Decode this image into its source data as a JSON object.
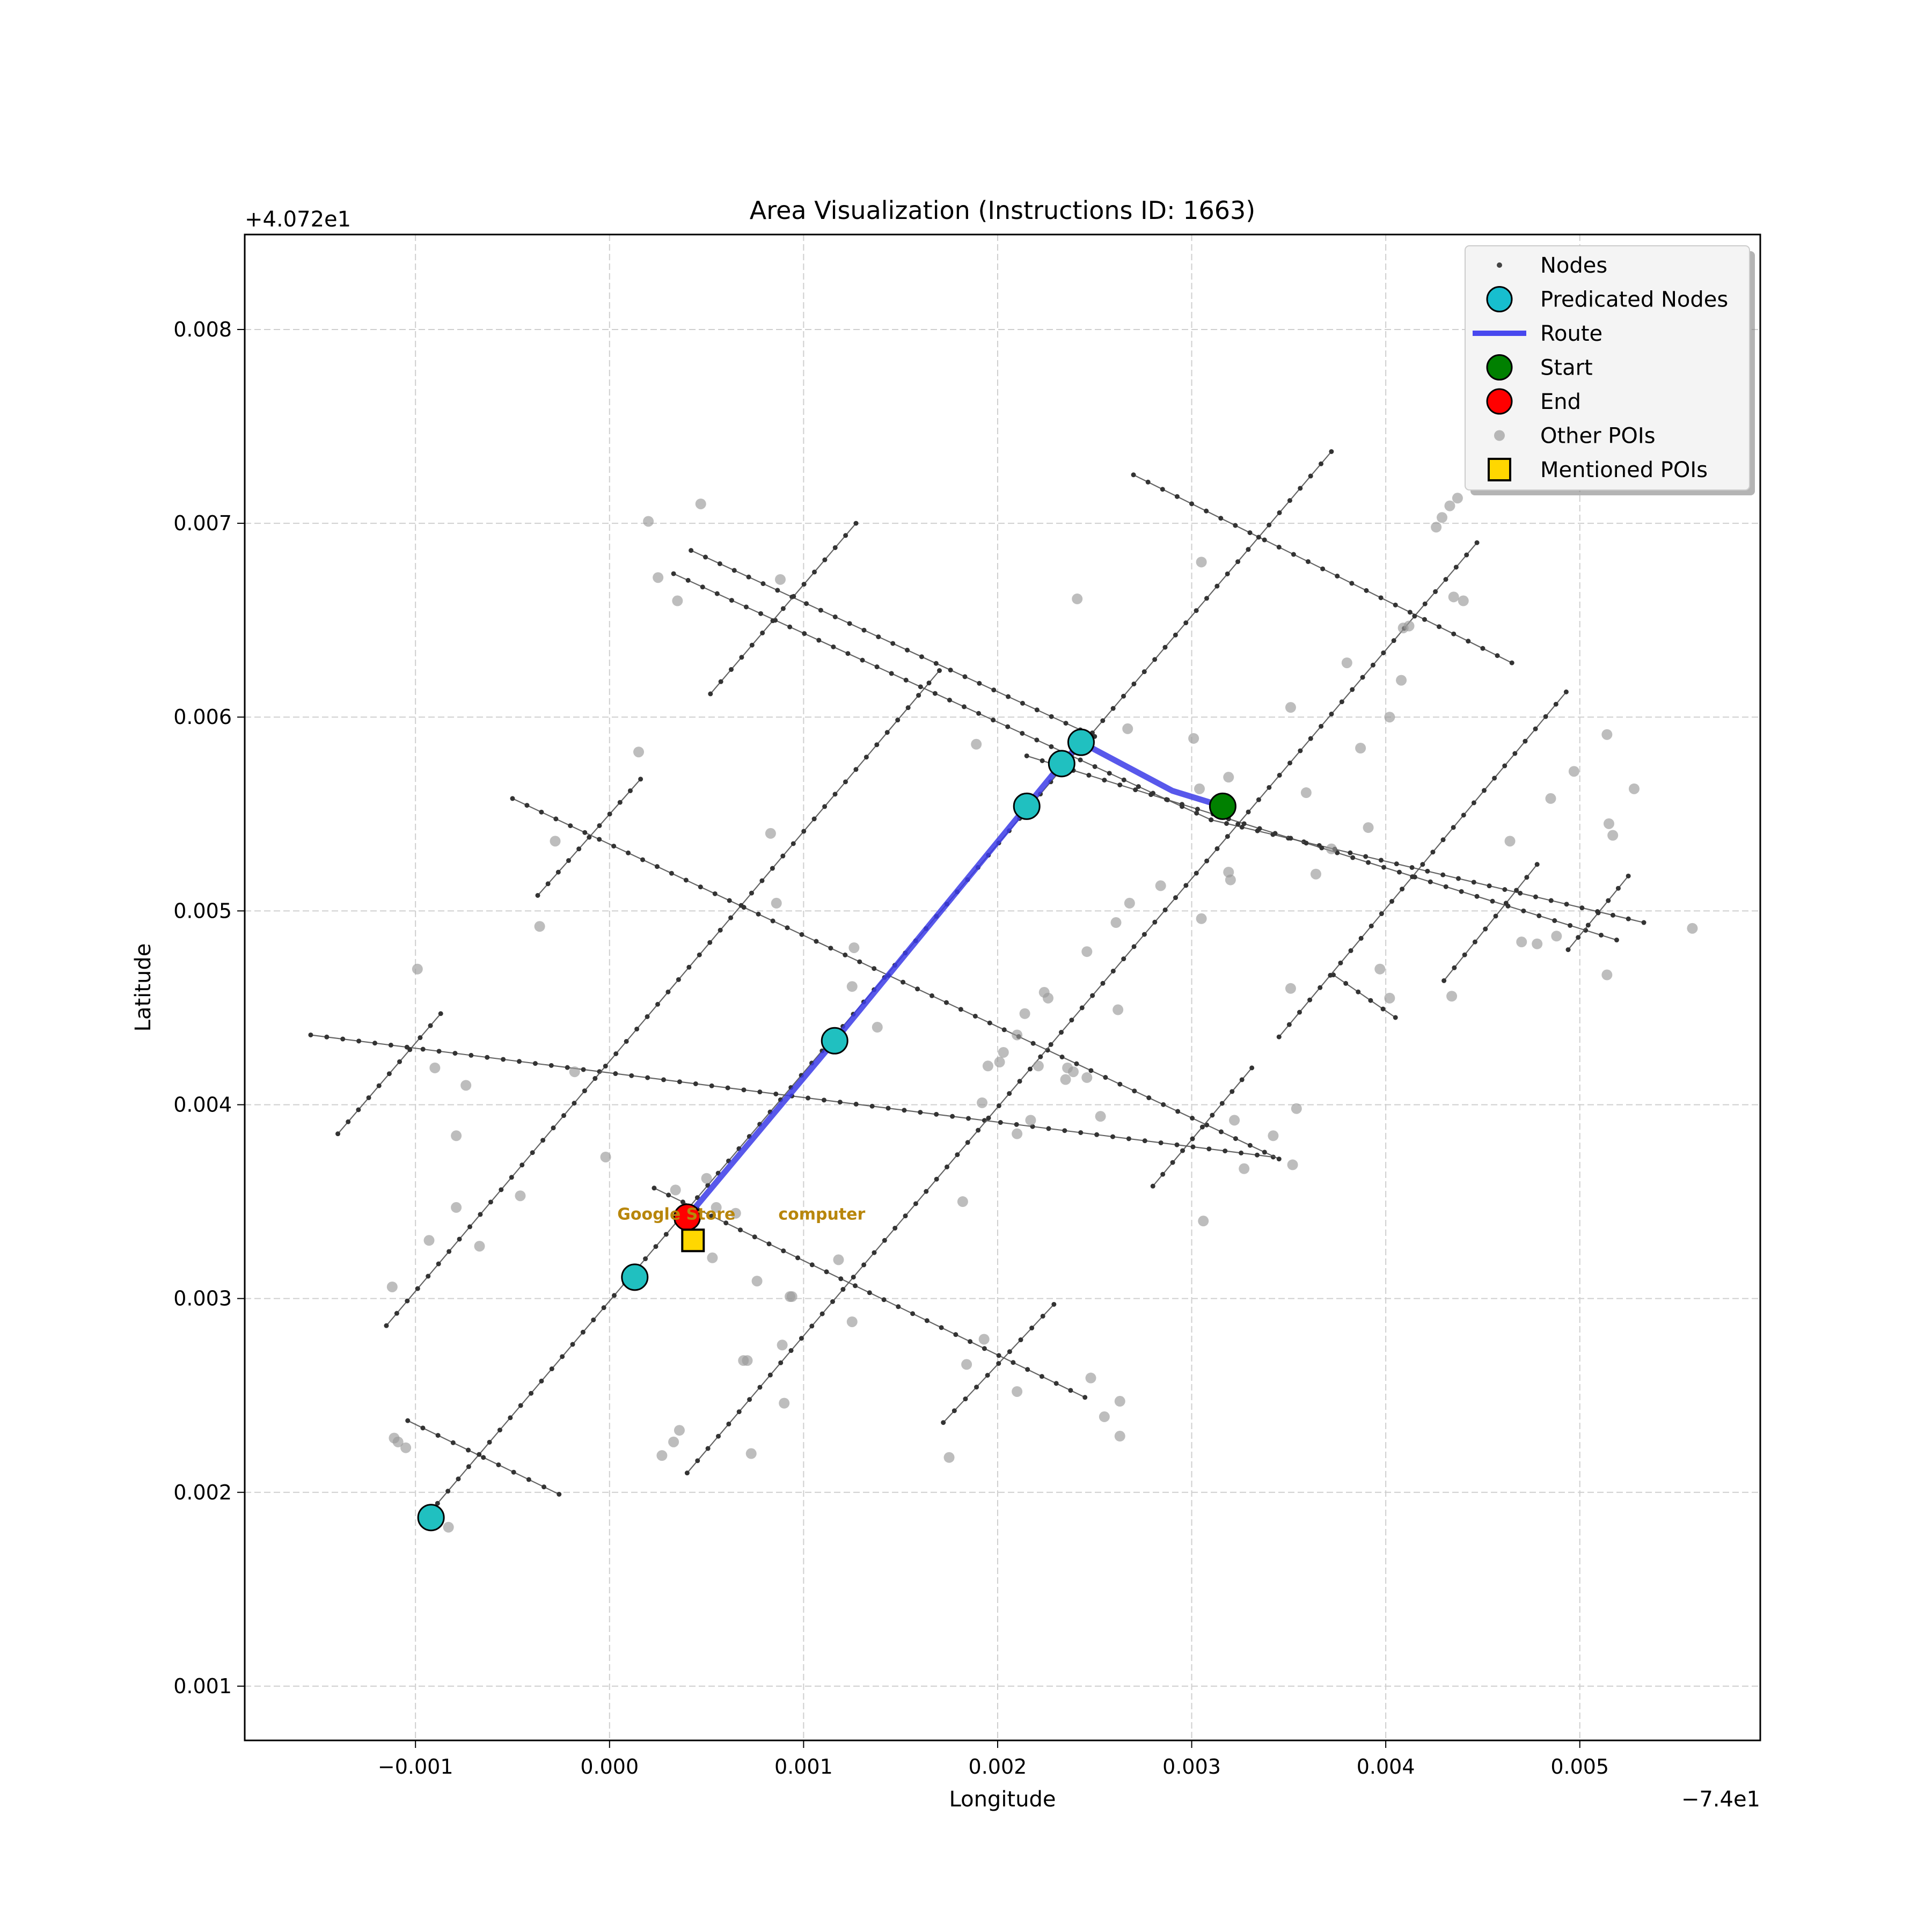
{
  "chart_data": {
    "type": "scatter",
    "title": "Area Visualization (Instructions ID: 1663)",
    "xlabel": "Longitude",
    "ylabel": "Latitude",
    "x_offset_label": "−7.4e1",
    "y_offset_label": "+4.072e1",
    "xlim": [
      -0.00188,
      0.00593
    ],
    "ylim": [
      0.00072,
      0.00849
    ],
    "x_ticks": [
      -0.001,
      0.0,
      0.001,
      0.002,
      0.003,
      0.004,
      0.005
    ],
    "x_tick_labels": [
      "−0.001",
      "0.000",
      "0.001",
      "0.002",
      "0.003",
      "0.004",
      "0.005"
    ],
    "y_ticks": [
      0.001,
      0.002,
      0.003,
      0.004,
      0.005,
      0.006,
      0.007,
      0.008
    ],
    "y_tick_labels": [
      "0.001",
      "0.002",
      "0.003",
      "0.004",
      "0.005",
      "0.006",
      "0.007",
      "0.008"
    ],
    "grid": true,
    "legend_position": "top-right",
    "legend": [
      {
        "label": "Nodes",
        "kind": "small-dot",
        "color": "#444444"
      },
      {
        "label": "Predicated Nodes",
        "kind": "big-circle",
        "color": "#17becf"
      },
      {
        "label": "Route",
        "kind": "line",
        "color": "#4848ee"
      },
      {
        "label": "Start",
        "kind": "big-circle",
        "color": "#008000"
      },
      {
        "label": "End",
        "kind": "big-circle",
        "color": "#ff0000"
      },
      {
        "label": "Other POIs",
        "kind": "poi",
        "color": "#aaaaaa"
      },
      {
        "label": "Mentioned POIs",
        "kind": "square",
        "color": "#ffd700"
      }
    ],
    "streets": [
      [
        [
          -0.00154,
          0.00436
        ],
        [
          0.00342,
          0.00373
        ]
      ],
      [
        [
          -0.00104,
          0.00237
        ],
        [
          -0.00026,
          0.00199
        ]
      ],
      [
        [
          -0.0005,
          0.00558
        ],
        [
          0.00345,
          0.00372
        ]
      ],
      [
        [
          0.00023,
          0.00357
        ],
        [
          0.00245,
          0.00249
        ]
      ],
      [
        [
          0.00042,
          0.00686
        ],
        [
          0.0025,
          0.0059
        ]
      ],
      [
        [
          0.00033,
          0.00674
        ],
        [
          0.0031,
          0.00547
        ]
      ],
      [
        [
          0.0031,
          0.00547
        ],
        [
          0.00533,
          0.00494
        ]
      ],
      [
        [
          0.00215,
          0.0058
        ],
        [
          0.00519,
          0.00485
        ]
      ],
      [
        [
          0.0027,
          0.00725
        ],
        [
          0.00465,
          0.00628
        ]
      ],
      [
        [
          0.00373,
          0.00467
        ],
        [
          0.00405,
          0.00445
        ]
      ],
      [
        [
          -0.00115,
          0.00286
        ],
        [
          0.0017,
          0.00624
        ]
      ],
      [
        [
          -0.00094,
          0.00188
        ],
        [
          0.00372,
          0.00737
        ]
      ],
      [
        [
          0.0004,
          0.0021
        ],
        [
          0.00447,
          0.0069
        ]
      ],
      [
        [
          0.00345,
          0.00435
        ],
        [
          0.00493,
          0.00613
        ]
      ],
      [
        [
          -0.0014,
          0.00385
        ],
        [
          -0.00087,
          0.00447
        ]
      ],
      [
        [
          -0.00037,
          0.00508
        ],
        [
          0.00016,
          0.00568
        ]
      ],
      [
        [
          0.00052,
          0.00612
        ],
        [
          0.00127,
          0.007
        ]
      ],
      [
        [
          0.00172,
          0.00236
        ],
        [
          0.00229,
          0.00297
        ]
      ],
      [
        [
          0.0028,
          0.00358
        ],
        [
          0.00331,
          0.00419
        ]
      ],
      [
        [
          0.0043,
          0.00464
        ],
        [
          0.00478,
          0.00524
        ]
      ],
      [
        [
          0.00494,
          0.0048
        ],
        [
          0.00525,
          0.00518
        ]
      ]
    ],
    "route": [
      [
        0.0004,
        0.00342
      ],
      [
        0.00116,
        0.00433
      ],
      [
        0.00215,
        0.00554
      ],
      [
        0.00233,
        0.00576
      ],
      [
        0.00243,
        0.00587
      ],
      [
        0.0029,
        0.00562
      ],
      [
        0.00316,
        0.00554
      ]
    ],
    "predicated_nodes": [
      [
        -0.00092,
        0.00187
      ],
      [
        0.00013,
        0.00311
      ],
      [
        0.00116,
        0.00433
      ],
      [
        0.00215,
        0.00554
      ],
      [
        0.00233,
        0.00576
      ],
      [
        0.00243,
        0.00587
      ]
    ],
    "start": [
      0.00316,
      0.00554
    ],
    "end": [
      0.0004,
      0.00342
    ],
    "mentioned_pois": [
      [
        0.00043,
        0.0033
      ]
    ],
    "annotations": [
      {
        "text": "Google Store",
        "x": 4e-05,
        "y": 0.00344
      },
      {
        "text": "computer",
        "x": 0.00087,
        "y": 0.00344
      }
    ],
    "other_pois": [
      [
        0.0002,
        0.00701
      ],
      [
        0.00047,
        0.0071
      ],
      [
        0.00025,
        0.00672
      ],
      [
        0.00035,
        0.0066
      ],
      [
        0.00088,
        0.00671
      ],
      [
        0.00241,
        0.00661
      ],
      [
        0.00305,
        0.0068
      ],
      [
        0.00426,
        0.00698
      ],
      [
        0.00429,
        0.00703
      ],
      [
        0.00433,
        0.00709
      ],
      [
        0.00437,
        0.00713
      ],
      [
        0.00435,
        0.00662
      ],
      [
        0.0044,
        0.0066
      ],
      [
        0.00409,
        0.00646
      ],
      [
        0.00412,
        0.00647
      ],
      [
        0.0038,
        0.00628
      ],
      [
        0.00408,
        0.00619
      ],
      [
        0.00351,
        0.00605
      ],
      [
        0.00402,
        0.006
      ],
      [
        0.00267,
        0.00594
      ],
      [
        0.00189,
        0.00586
      ],
      [
        0.00301,
        0.00589
      ],
      [
        0.00387,
        0.00584
      ],
      [
        0.00514,
        0.00591
      ],
      [
        0.00319,
        0.00569
      ],
      [
        0.00304,
        0.00563
      ],
      [
        0.00359,
        0.00561
      ],
      [
        0.00497,
        0.00572
      ],
      [
        0.00528,
        0.00563
      ],
      [
        0.00485,
        0.00558
      ],
      [
        0.00015,
        0.00582
      ],
      [
        0.00083,
        0.0054
      ],
      [
        -0.00028,
        0.00536
      ],
      [
        0.00391,
        0.00543
      ],
      [
        0.00372,
        0.00532
      ],
      [
        0.00364,
        0.00519
      ],
      [
        0.00464,
        0.00536
      ],
      [
        0.00515,
        0.00545
      ],
      [
        0.00517,
        0.00539
      ],
      [
        0.00319,
        0.0052
      ],
      [
        0.00284,
        0.00513
      ],
      [
        0.0032,
        0.00516
      ],
      [
        0.00268,
        0.00504
      ],
      [
        0.00086,
        0.00504
      ],
      [
        0.00261,
        0.00494
      ],
      [
        0.00305,
        0.00496
      ],
      [
        -0.00036,
        0.00492
      ],
      [
        0.00558,
        0.00491
      ],
      [
        0.0047,
        0.00484
      ],
      [
        0.00478,
        0.00483
      ],
      [
        0.00488,
        0.00487
      ],
      [
        0.00246,
        0.00479
      ],
      [
        0.00126,
        0.00481
      ],
      [
        0.00397,
        0.0047
      ],
      [
        0.00514,
        0.00467
      ],
      [
        -0.00099,
        0.0047
      ],
      [
        0.00351,
        0.0046
      ],
      [
        0.00125,
        0.00461
      ],
      [
        0.00224,
        0.00458
      ],
      [
        0.00226,
        0.00455
      ],
      [
        0.00402,
        0.00455
      ],
      [
        0.00434,
        0.00456
      ],
      [
        0.00214,
        0.00447
      ],
      [
        0.00262,
        0.00449
      ],
      [
        0.00138,
        0.0044
      ],
      [
        0.0021,
        0.00436
      ],
      [
        0.00203,
        0.00427
      ],
      [
        0.00201,
        0.00422
      ],
      [
        0.00195,
        0.0042
      ],
      [
        0.00221,
        0.0042
      ],
      [
        0.00236,
        0.00419
      ],
      [
        0.00239,
        0.00417
      ],
      [
        0.00246,
        0.00414
      ],
      [
        0.00235,
        0.00413
      ],
      [
        -0.0009,
        0.00419
      ],
      [
        -0.00018,
        0.00417
      ],
      [
        -0.00074,
        0.0041
      ],
      [
        0.00192,
        0.00401
      ],
      [
        0.00354,
        0.00398
      ],
      [
        0.00253,
        0.00394
      ],
      [
        0.00217,
        0.00392
      ],
      [
        0.00322,
        0.00392
      ],
      [
        0.0021,
        0.00385
      ],
      [
        0.00342,
        0.00384
      ],
      [
        -0.00079,
        0.00384
      ],
      [
        0.00352,
        0.00369
      ],
      [
        0.00327,
        0.00367
      ],
      [
        -2e-05,
        0.00373
      ],
      [
        0.00034,
        0.00356
      ],
      [
        0.0005,
        0.00362
      ],
      [
        -0.00046,
        0.00353
      ],
      [
        0.00055,
        0.00347
      ],
      [
        0.00182,
        0.0035
      ],
      [
        0.00065,
        0.00344
      ],
      [
        -0.00079,
        0.00347
      ],
      [
        0.00306,
        0.0034
      ],
      [
        -0.00093,
        0.0033
      ],
      [
        -0.00067,
        0.00327
      ],
      [
        0.00053,
        0.00321
      ],
      [
        0.00118,
        0.0032
      ],
      [
        -0.00112,
        0.00306
      ],
      [
        0.00076,
        0.00309
      ],
      [
        0.00093,
        0.00301
      ],
      [
        0.00094,
        0.00301
      ],
      [
        0.00125,
        0.00288
      ],
      [
        0.00193,
        0.00279
      ],
      [
        0.00089,
        0.00276
      ],
      [
        0.00069,
        0.00268
      ],
      [
        0.00071,
        0.00268
      ],
      [
        0.00184,
        0.00266
      ],
      [
        0.00248,
        0.00259
      ],
      [
        0.0021,
        0.00252
      ],
      [
        0.0009,
        0.00246
      ],
      [
        0.00263,
        0.00247
      ],
      [
        0.00255,
        0.00239
      ],
      [
        0.00036,
        0.00232
      ],
      [
        -0.00111,
        0.00228
      ],
      [
        -0.00109,
        0.00226
      ],
      [
        0.00033,
        0.00226
      ],
      [
        -0.00105,
        0.00223
      ],
      [
        0.00263,
        0.00229
      ],
      [
        0.00027,
        0.00219
      ],
      [
        0.00073,
        0.0022
      ],
      [
        0.00175,
        0.00218
      ],
      [
        -0.00083,
        0.00182
      ]
    ]
  }
}
